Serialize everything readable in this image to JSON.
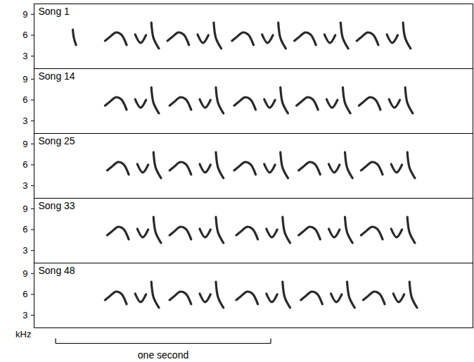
{
  "chart_data": [
    {
      "type": "line",
      "title": "Song 1",
      "color": "#2a2a2a",
      "tick_labels": "y",
      "xlim": [
        0,
        2.04
      ],
      "ylim": [
        1.2,
        10.5
      ],
      "yticks": [
        3,
        6,
        9
      ],
      "x": [
        0.18,
        0.185,
        0.195,
        null,
        0.33,
        0.35,
        0.38,
        0.405,
        0.43,
        null,
        0.47,
        0.495,
        0.52,
        null,
        0.545,
        0.555,
        0.58,
        null,
        0.62,
        0.64,
        0.67,
        0.695,
        0.72,
        null,
        0.76,
        0.785,
        0.81,
        null,
        0.835,
        0.845,
        0.87,
        null,
        0.92,
        0.94,
        0.97,
        0.995,
        1.02,
        null,
        1.06,
        1.085,
        1.11,
        null,
        1.135,
        1.145,
        1.17,
        null,
        1.21,
        1.23,
        1.26,
        1.285,
        1.31,
        null,
        1.35,
        1.375,
        1.4,
        null,
        1.425,
        1.435,
        1.46,
        null,
        1.5,
        1.52,
        1.55,
        1.575,
        1.6,
        null,
        1.64,
        1.665,
        1.69,
        null,
        1.715,
        1.725,
        1.75,
        null
      ],
      "values": [
        6.8,
        5.6,
        4.6,
        null,
        5.2,
        5.7,
        6.4,
        6.1,
        4.6,
        null,
        6.1,
        4.9,
        6.0,
        null,
        7.8,
        5.6,
        4.1,
        null,
        5.2,
        5.7,
        6.4,
        6.1,
        4.6,
        null,
        6.1,
        4.9,
        6.0,
        null,
        7.8,
        5.6,
        4.1,
        null,
        5.2,
        5.7,
        6.4,
        6.1,
        4.6,
        null,
        6.1,
        4.9,
        6.0,
        null,
        7.8,
        5.6,
        4.1,
        null,
        5.2,
        5.7,
        6.4,
        6.1,
        4.6,
        null,
        6.1,
        4.9,
        6.0,
        null,
        7.8,
        5.6,
        4.1,
        null,
        5.2,
        5.7,
        6.4,
        6.1,
        4.6,
        null,
        6.1,
        4.9,
        6.0,
        null,
        7.8,
        5.6,
        4.1,
        null
      ]
    },
    {
      "type": "line",
      "title": "Song 14",
      "color": "#2a2a2a",
      "tick_labels": "y",
      "xlim": [
        0,
        2.04
      ],
      "ylim": [
        1.2,
        10.5
      ],
      "yticks": [
        3,
        6,
        9
      ],
      "x": [
        0.33,
        0.35,
        0.38,
        0.405,
        0.43,
        null,
        0.47,
        0.495,
        0.52,
        null,
        0.545,
        0.555,
        0.58,
        null,
        0.63,
        0.65,
        0.68,
        0.705,
        0.73,
        null,
        0.77,
        0.795,
        0.82,
        null,
        0.845,
        0.855,
        0.88,
        null,
        0.93,
        0.95,
        0.98,
        1.005,
        1.03,
        null,
        1.07,
        1.095,
        1.12,
        null,
        1.145,
        1.155,
        1.18,
        null,
        1.22,
        1.24,
        1.27,
        1.295,
        1.32,
        null,
        1.36,
        1.385,
        1.41,
        null,
        1.435,
        1.445,
        1.47,
        null,
        1.51,
        1.53,
        1.56,
        1.585,
        1.61,
        null,
        1.65,
        1.675,
        1.7,
        null,
        1.725,
        1.735,
        1.76,
        null
      ],
      "values": [
        5.2,
        5.7,
        6.4,
        6.1,
        4.6,
        null,
        6.1,
        4.9,
        6.0,
        null,
        7.8,
        5.6,
        4.1,
        null,
        5.2,
        5.7,
        6.4,
        6.1,
        4.6,
        null,
        6.1,
        4.9,
        6.0,
        null,
        7.8,
        5.6,
        4.1,
        null,
        5.2,
        5.7,
        6.4,
        6.1,
        4.6,
        null,
        6.1,
        4.9,
        6.0,
        null,
        7.8,
        5.6,
        4.1,
        null,
        5.2,
        5.7,
        6.4,
        6.1,
        4.6,
        null,
        6.1,
        4.9,
        6.0,
        null,
        7.8,
        5.6,
        4.1,
        null,
        5.2,
        5.7,
        6.4,
        6.1,
        4.6,
        null,
        6.1,
        4.9,
        6.0,
        null,
        7.8,
        5.6,
        4.1,
        null
      ]
    },
    {
      "type": "line",
      "title": "Song 25",
      "color": "#2a2a2a",
      "tick_labels": "y",
      "xlim": [
        0,
        2.04
      ],
      "ylim": [
        1.2,
        10.5
      ],
      "yticks": [
        3,
        6,
        9
      ],
      "x": [
        0.34,
        0.36,
        0.39,
        0.415,
        0.44,
        null,
        0.48,
        0.505,
        0.53,
        null,
        0.555,
        0.565,
        0.59,
        null,
        0.63,
        0.65,
        0.68,
        0.705,
        0.73,
        null,
        0.77,
        0.795,
        0.82,
        null,
        0.845,
        0.855,
        0.88,
        null,
        0.93,
        0.95,
        0.98,
        1.005,
        1.03,
        null,
        1.07,
        1.095,
        1.12,
        null,
        1.145,
        1.155,
        1.18,
        null,
        1.23,
        1.25,
        1.28,
        1.305,
        1.33,
        null,
        1.37,
        1.395,
        1.42,
        null,
        1.445,
        1.455,
        1.48,
        null,
        1.52,
        1.54,
        1.57,
        1.595,
        1.62,
        null,
        1.66,
        1.685,
        1.71,
        null,
        1.735,
        1.745,
        1.77,
        null
      ],
      "values": [
        5.2,
        5.7,
        6.4,
        6.1,
        4.6,
        null,
        6.1,
        4.9,
        6.0,
        null,
        7.8,
        5.6,
        4.1,
        null,
        5.2,
        5.7,
        6.4,
        6.1,
        4.6,
        null,
        6.1,
        4.9,
        6.0,
        null,
        7.8,
        5.6,
        4.1,
        null,
        5.2,
        5.7,
        6.4,
        6.1,
        4.6,
        null,
        6.1,
        4.9,
        6.0,
        null,
        7.8,
        5.6,
        4.1,
        null,
        5.2,
        5.7,
        6.4,
        6.1,
        4.6,
        null,
        6.1,
        4.9,
        6.0,
        null,
        7.8,
        5.6,
        4.1,
        null,
        5.2,
        5.7,
        6.4,
        6.1,
        4.6,
        null,
        6.1,
        4.9,
        6.0,
        null,
        7.8,
        5.6,
        4.1,
        null
      ]
    },
    {
      "type": "line",
      "title": "Song 33",
      "color": "#2a2a2a",
      "tick_labels": "y",
      "xlim": [
        0,
        2.04
      ],
      "ylim": [
        1.2,
        10.5
      ],
      "yticks": [
        3,
        6,
        9
      ],
      "x": [
        0.34,
        0.36,
        0.39,
        0.415,
        0.44,
        null,
        0.48,
        0.505,
        0.53,
        null,
        0.555,
        0.565,
        0.59,
        null,
        0.63,
        0.65,
        0.68,
        0.705,
        0.73,
        null,
        0.77,
        0.795,
        0.82,
        null,
        0.845,
        0.855,
        0.88,
        null,
        0.94,
        0.96,
        0.99,
        1.015,
        1.04,
        null,
        1.08,
        1.105,
        1.13,
        null,
        1.155,
        1.165,
        1.19,
        null,
        1.23,
        1.25,
        1.28,
        1.305,
        1.33,
        null,
        1.37,
        1.395,
        1.42,
        null,
        1.445,
        1.455,
        1.48,
        null,
        1.52,
        1.54,
        1.57,
        1.595,
        1.62,
        null,
        1.66,
        1.685,
        1.71,
        null,
        1.735,
        1.745,
        1.77,
        null
      ],
      "values": [
        5.2,
        5.7,
        6.4,
        6.1,
        4.6,
        null,
        6.1,
        4.9,
        6.0,
        null,
        7.8,
        5.6,
        4.1,
        null,
        5.2,
        5.7,
        6.4,
        6.1,
        4.6,
        null,
        6.1,
        4.9,
        6.0,
        null,
        7.8,
        5.6,
        4.1,
        null,
        5.2,
        5.7,
        6.4,
        6.1,
        4.6,
        null,
        6.1,
        4.9,
        6.0,
        null,
        7.8,
        5.6,
        4.1,
        null,
        5.2,
        5.7,
        6.4,
        6.1,
        4.6,
        null,
        6.1,
        4.9,
        6.0,
        null,
        7.8,
        5.6,
        4.1,
        null,
        5.2,
        5.7,
        6.4,
        6.1,
        4.6,
        null,
        6.1,
        4.9,
        6.0,
        null,
        7.8,
        5.6,
        4.1,
        null
      ]
    },
    {
      "type": "line",
      "title": "Song 48",
      "color": "#2a2a2a",
      "tick_labels": "y",
      "xlim": [
        0,
        2.04
      ],
      "ylim": [
        1.2,
        10.5
      ],
      "yticks": [
        3,
        6,
        9
      ],
      "ylabel": "kHz",
      "scale_bar": {
        "label": "one second",
        "start": 0.1,
        "end": 1.1
      },
      "x": [
        0.33,
        0.35,
        0.38,
        0.405,
        0.43,
        null,
        0.47,
        0.495,
        0.52,
        null,
        0.545,
        0.555,
        0.58,
        null,
        0.63,
        0.65,
        0.68,
        0.705,
        0.73,
        null,
        0.77,
        0.795,
        0.82,
        null,
        0.845,
        0.855,
        0.88,
        null,
        0.94,
        0.96,
        0.99,
        1.015,
        1.04,
        null,
        1.08,
        1.105,
        1.13,
        null,
        1.155,
        1.165,
        1.19,
        null,
        1.24,
        1.26,
        1.29,
        1.315,
        1.34,
        null,
        1.38,
        1.405,
        1.43,
        null,
        1.455,
        1.465,
        1.49,
        null,
        1.53,
        1.55,
        1.58,
        1.605,
        1.63,
        null,
        1.67,
        1.695,
        1.72,
        null,
        1.745,
        1.755,
        1.78,
        null
      ],
      "values": [
        5.2,
        5.7,
        6.4,
        6.1,
        4.6,
        null,
        6.1,
        4.9,
        6.0,
        null,
        7.8,
        5.6,
        4.1,
        null,
        5.2,
        5.7,
        6.4,
        6.1,
        4.6,
        null,
        6.1,
        4.9,
        6.0,
        null,
        7.8,
        5.6,
        4.1,
        null,
        5.2,
        5.7,
        6.4,
        6.1,
        4.6,
        null,
        6.1,
        4.9,
        6.0,
        null,
        7.8,
        5.6,
        4.1,
        null,
        5.2,
        5.7,
        6.4,
        6.1,
        4.6,
        null,
        6.1,
        4.9,
        6.0,
        null,
        7.8,
        5.6,
        4.1,
        null,
        5.2,
        5.7,
        6.4,
        6.1,
        4.6,
        null,
        6.1,
        4.9,
        6.0,
        null,
        7.8,
        5.6,
        4.1,
        null
      ]
    }
  ]
}
